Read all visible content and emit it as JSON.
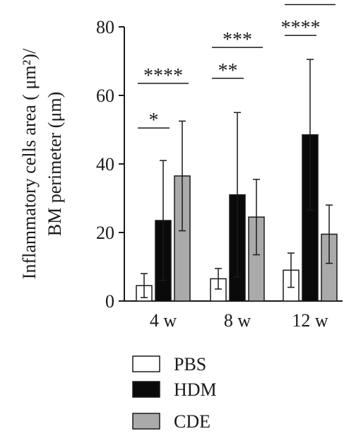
{
  "chart_data": {
    "type": "bar",
    "ylabel_line1": "Inflammatory cells area ( μm²)/",
    "ylabel_line2": "BM perimeter (μm)",
    "xlabel": "",
    "ylim": [
      0,
      80
    ],
    "yticks": [
      0,
      20,
      40,
      60,
      80
    ],
    "categories": [
      "4 w",
      "8 w",
      "12 w"
    ],
    "series": [
      {
        "name": "PBS",
        "values": [
          4.5,
          6.5,
          9.0
        ],
        "errors": [
          3.5,
          3.0,
          5.0
        ],
        "color": "#ffffff"
      },
      {
        "name": "HDM",
        "values": [
          23.5,
          31.0,
          48.5
        ],
        "errors": [
          17.5,
          24.0,
          22.0
        ],
        "color": "#0a0a0a"
      },
      {
        "name": "CDE",
        "values": [
          36.5,
          24.5,
          19.5
        ],
        "errors": [
          16.0,
          11.0,
          8.5
        ],
        "color": "#aaaaaa"
      }
    ],
    "significance": [
      {
        "group": 0,
        "from": 0,
        "to": 1,
        "label": "*",
        "y": 50.5
      },
      {
        "group": 0,
        "from": 0,
        "to": 2,
        "label": "****",
        "y": 63.5
      },
      {
        "group": 1,
        "from": 0,
        "to": 1,
        "label": "**",
        "y": 65.0
      },
      {
        "group": 1,
        "from": 0,
        "to": 2,
        "label": "***",
        "y": 74.0
      },
      {
        "group": 2,
        "from": 0,
        "to": 1,
        "label": "****",
        "y": 77.5
      },
      {
        "group": 2,
        "from": 0,
        "to": 2,
        "label": "*",
        "y": 86.5
      }
    ],
    "legend_position": "bottom",
    "grid": false
  }
}
